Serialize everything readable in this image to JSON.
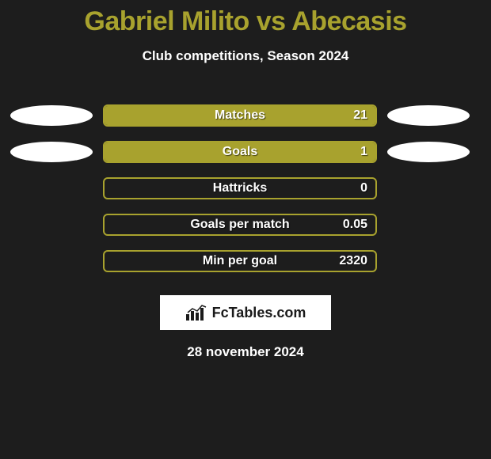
{
  "title": {
    "left": "Gabriel Milito",
    "vs": "vs",
    "right": "Abecasis",
    "color": "#a8a22e",
    "fontsize": 34
  },
  "subtitle": "Club competitions, Season 2024",
  "chart": {
    "type": "bar",
    "bar_fill_color": "#a8a22e",
    "bar_border_color": "#a8a22e",
    "bar_bg_color": "transparent",
    "label_color": "#ffffff",
    "value_color": "#ffffff",
    "label_fontsize": 16,
    "rows": [
      {
        "label": "Matches",
        "value": "21",
        "fill_pct": 100,
        "left_ellipse": true,
        "right_ellipse": true
      },
      {
        "label": "Goals",
        "value": "1",
        "fill_pct": 100,
        "left_ellipse": true,
        "right_ellipse": true
      },
      {
        "label": "Hattricks",
        "value": "0",
        "fill_pct": 0,
        "left_ellipse": false,
        "right_ellipse": false
      },
      {
        "label": "Goals per match",
        "value": "0.05",
        "fill_pct": 0,
        "left_ellipse": false,
        "right_ellipse": false
      },
      {
        "label": "Min per goal",
        "value": "2320",
        "fill_pct": 0,
        "left_ellipse": false,
        "right_ellipse": false
      }
    ]
  },
  "ellipse": {
    "color": "#ffffff",
    "width": 104,
    "height": 26
  },
  "logo": {
    "text": "FcTables.com",
    "box_bg": "#ffffff",
    "text_color": "#1a1a1a"
  },
  "date": "28 november 2024",
  "background_color": "#1d1d1d"
}
